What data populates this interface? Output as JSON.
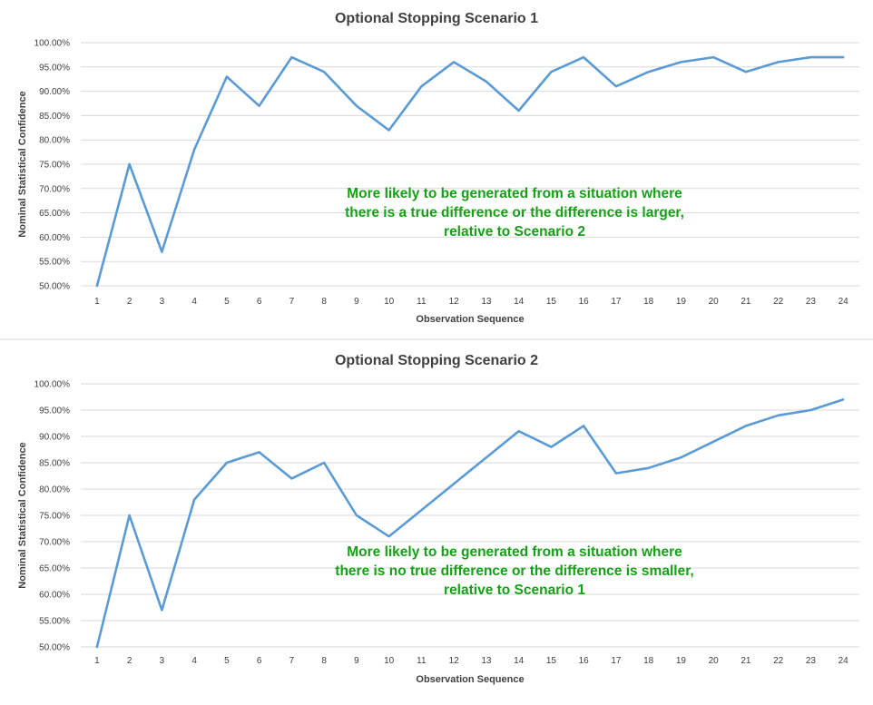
{
  "chart_data": [
    {
      "type": "line",
      "title": "Optional Stopping Scenario 1",
      "xlabel": "Observation Sequence",
      "ylabel": "Nominal Statistical Confidence",
      "categories": [
        "1",
        "2",
        "3",
        "4",
        "5",
        "6",
        "7",
        "8",
        "9",
        "10",
        "11",
        "12",
        "13",
        "14",
        "15",
        "16",
        "17",
        "18",
        "19",
        "20",
        "21",
        "22",
        "23",
        "24"
      ],
      "ylim": [
        0.5,
        1.0
      ],
      "yticks": [
        "50.00%",
        "55.00%",
        "60.00%",
        "65.00%",
        "70.00%",
        "75.00%",
        "80.00%",
        "85.00%",
        "90.00%",
        "95.00%",
        "100.00%"
      ],
      "grid": true,
      "color": "#5b9bd5",
      "series": [
        {
          "values": [
            0.5,
            0.75,
            0.57,
            0.78,
            0.93,
            0.87,
            0.97,
            0.94,
            0.87,
            0.82,
            0.91,
            0.96,
            0.92,
            0.86,
            0.94,
            0.97,
            0.91,
            0.94,
            0.96,
            0.97,
            0.94,
            0.96,
            0.97,
            0.97
          ]
        }
      ],
      "annotation": {
        "lines": [
          "More likely to be generated from a situation where",
          "there is a true difference or the difference is larger,",
          "relative to Scenario 2"
        ],
        "color": "#16a016"
      }
    },
    {
      "type": "line",
      "title": "Optional Stopping Scenario 2",
      "xlabel": "Observation Sequence",
      "ylabel": "Nominal Statistical Confidence",
      "categories": [
        "1",
        "2",
        "3",
        "4",
        "5",
        "6",
        "7",
        "8",
        "9",
        "10",
        "11",
        "12",
        "13",
        "14",
        "15",
        "16",
        "17",
        "18",
        "19",
        "20",
        "21",
        "22",
        "23",
        "24"
      ],
      "ylim": [
        0.5,
        1.0
      ],
      "yticks": [
        "50.00%",
        "55.00%",
        "60.00%",
        "65.00%",
        "70.00%",
        "75.00%",
        "80.00%",
        "85.00%",
        "90.00%",
        "95.00%",
        "100.00%"
      ],
      "grid": true,
      "color": "#5b9bd5",
      "series": [
        {
          "values": [
            0.5,
            0.75,
            0.57,
            0.78,
            0.85,
            0.87,
            0.82,
            0.85,
            0.75,
            0.71,
            0.76,
            0.81,
            0.86,
            0.91,
            0.88,
            0.92,
            0.83,
            0.84,
            0.86,
            0.89,
            0.92,
            0.94,
            0.95,
            0.97
          ]
        }
      ],
      "annotation": {
        "lines": [
          "More likely to be generated from a situation where",
          "there is no true difference or the difference is smaller,",
          "relative to Scenario 1"
        ],
        "color": "#16a016"
      }
    }
  ]
}
